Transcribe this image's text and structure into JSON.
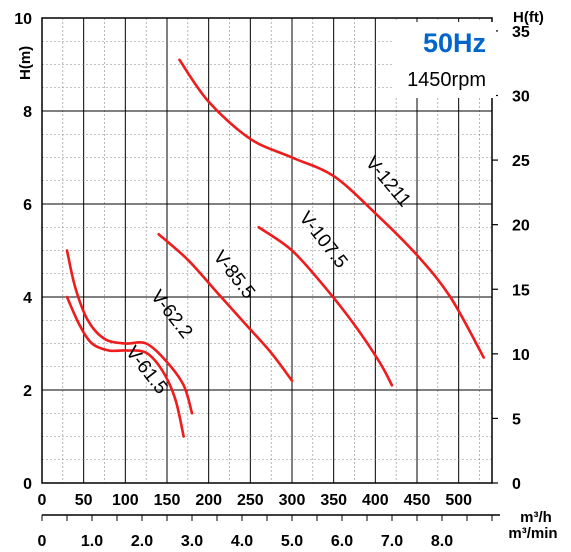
{
  "chart_data": {
    "type": "line",
    "frequency_label": "50Hz",
    "speed_label": "1450rpm",
    "accent_color": "#0066cc",
    "curve_color": "#ee1c1c",
    "grid": true,
    "left_axis": {
      "label": "H(m)",
      "ylim": [
        0,
        10
      ],
      "ticks": [
        "0",
        "2",
        "4",
        "6",
        "8",
        "10"
      ],
      "tick_values": [
        0,
        2,
        4,
        6,
        8,
        10
      ]
    },
    "right_axis": {
      "label": "H(ft)",
      "ylim": [
        0,
        36
      ],
      "ticks": [
        "0",
        "5",
        "10",
        "15",
        "20",
        "25",
        "30",
        "35"
      ],
      "tick_values": [
        0,
        5,
        10,
        15,
        20,
        25,
        30,
        35
      ]
    },
    "x_axis_m3h": {
      "label_top": "m³/h",
      "xlim": [
        0,
        540
      ],
      "ticks": [
        "0",
        "50",
        "100",
        "150",
        "200",
        "250",
        "300",
        "350",
        "400",
        "450",
        "500"
      ],
      "tick_values": [
        0,
        50,
        100,
        150,
        200,
        250,
        300,
        350,
        400,
        450,
        500
      ]
    },
    "x_axis_m3min": {
      "label_bottom": "m³/min",
      "xlim": [
        0,
        9
      ],
      "ticks": [
        "0",
        "1.0",
        "2.0",
        "3.0",
        "4.0",
        "5.0",
        "6.0",
        "7.0",
        "8.0"
      ],
      "tick_values": [
        0,
        1,
        2,
        3,
        4,
        5,
        6,
        7,
        8
      ]
    },
    "series": [
      {
        "name": "V-61.5",
        "x": [
          30,
          45,
          60,
          80,
          100,
          125,
          145,
          160,
          170
        ],
        "y": [
          4.0,
          3.4,
          3.0,
          2.85,
          2.85,
          2.8,
          2.4,
          1.8,
          1.0
        ]
      },
      {
        "name": "V-62.2",
        "x": [
          30,
          40,
          55,
          75,
          100,
          125,
          150,
          170,
          180
        ],
        "y": [
          5.0,
          4.2,
          3.5,
          3.1,
          3.0,
          3.0,
          2.6,
          2.1,
          1.5
        ]
      },
      {
        "name": "V-85.5",
        "x": [
          140,
          175,
          210,
          245,
          275,
          300
        ],
        "y": [
          5.35,
          4.8,
          4.1,
          3.4,
          2.8,
          2.2
        ]
      },
      {
        "name": "V-107.5",
        "x": [
          260,
          300,
          340,
          375,
          405,
          420
        ],
        "y": [
          5.5,
          5.0,
          4.2,
          3.4,
          2.6,
          2.1
        ]
      },
      {
        "name": "V-1211",
        "x": [
          165,
          200,
          250,
          300,
          350,
          400,
          450,
          490,
          530
        ],
        "y": [
          9.1,
          8.2,
          7.4,
          7.0,
          6.6,
          5.8,
          4.9,
          4.0,
          2.7
        ]
      }
    ]
  }
}
